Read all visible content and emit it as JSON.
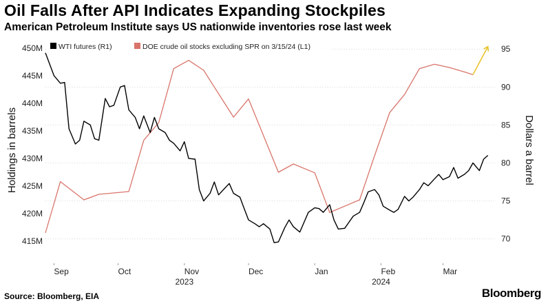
{
  "header": {
    "title": "Oil Falls After API Indicates Expanding Stockpiles",
    "subtitle": "American Petroleum Institute says US nationwide inventories rose last week"
  },
  "footer": {
    "source": "Source: Bloomberg, EIA",
    "brand": "Bloomberg"
  },
  "chart_data": {
    "type": "line",
    "x_range": [
      "2023-08-28",
      "2024-03-25"
    ],
    "x_tick_labels": [
      {
        "label": "Sep",
        "date": "2023-09-01"
      },
      {
        "label": "Oct",
        "date": "2023-10-01"
      },
      {
        "label": "Nov",
        "date": "2023-11-01"
      },
      {
        "label": "Dec",
        "date": "2023-12-01"
      },
      {
        "label": "Jan",
        "date": "2024-01-01"
      },
      {
        "label": "Feb",
        "date": "2024-02-01"
      },
      {
        "label": "Mar",
        "date": "2024-03-01"
      }
    ],
    "x_year_labels": [
      {
        "label": "2023",
        "date": "2023-11-01"
      },
      {
        "label": "2024",
        "date": "2024-02-01"
      }
    ],
    "left_axis": {
      "label": "Holdings in barrels",
      "range": [
        411,
        451.5
      ],
      "ticks": [
        415,
        420,
        425,
        430,
        435,
        440,
        445,
        450
      ],
      "tick_labels": [
        "415M",
        "420M",
        "425M",
        "430M",
        "435M",
        "440M",
        "445M",
        "450M"
      ]
    },
    "right_axis": {
      "label": "Dollars a barrel",
      "range": [
        66.8,
        96.2
      ],
      "ticks": [
        70,
        75,
        80,
        85,
        90,
        95
      ],
      "tick_labels": [
        "70",
        "75",
        "80",
        "85",
        "90",
        "95"
      ]
    },
    "grid": true,
    "legend_position": "top-left",
    "series": [
      {
        "name": "WTI futures (R1)",
        "axis": "right",
        "color": "#000000",
        "points": [
          [
            "2023-08-28",
            94.5
          ],
          [
            "2023-08-30",
            93.0
          ],
          [
            "2023-09-01",
            91.5
          ],
          [
            "2023-09-04",
            90.5
          ],
          [
            "2023-09-06",
            90.6
          ],
          [
            "2023-09-08",
            84.5
          ],
          [
            "2023-09-11",
            82.5
          ],
          [
            "2023-09-13",
            83.0
          ],
          [
            "2023-09-15",
            85.5
          ],
          [
            "2023-09-18",
            85.0
          ],
          [
            "2023-09-20",
            83.2
          ],
          [
            "2023-09-22",
            83.0
          ],
          [
            "2023-09-25",
            88.5
          ],
          [
            "2023-09-27",
            87.4
          ],
          [
            "2023-09-29",
            87.6
          ],
          [
            "2023-10-02",
            90.0
          ],
          [
            "2023-10-04",
            90.2
          ],
          [
            "2023-10-06",
            87.0
          ],
          [
            "2023-10-09",
            86.0
          ],
          [
            "2023-10-11",
            84.5
          ],
          [
            "2023-10-13",
            86.2
          ],
          [
            "2023-10-16",
            84.0
          ],
          [
            "2023-10-18",
            86.0
          ],
          [
            "2023-10-20",
            84.5
          ],
          [
            "2023-10-23",
            84.0
          ],
          [
            "2023-10-25",
            83.0
          ],
          [
            "2023-10-27",
            82.6
          ],
          [
            "2023-10-30",
            81.6
          ],
          [
            "2023-11-01",
            82.8
          ],
          [
            "2023-11-03",
            80.6
          ],
          [
            "2023-11-06",
            80.5
          ],
          [
            "2023-11-08",
            76.5
          ],
          [
            "2023-11-10",
            75.0
          ],
          [
            "2023-11-13",
            76.0
          ],
          [
            "2023-11-15",
            77.5
          ],
          [
            "2023-11-17",
            75.8
          ],
          [
            "2023-11-20",
            76.7
          ],
          [
            "2023-11-22",
            77.3
          ],
          [
            "2023-11-24",
            76.0
          ],
          [
            "2023-11-27",
            75.5
          ],
          [
            "2023-11-29",
            74.0
          ],
          [
            "2023-12-01",
            72.5
          ],
          [
            "2023-12-04",
            72.0
          ],
          [
            "2023-12-06",
            71.6
          ],
          [
            "2023-12-08",
            72.0
          ],
          [
            "2023-12-11",
            71.3
          ],
          [
            "2023-12-13",
            69.5
          ],
          [
            "2023-12-15",
            69.6
          ],
          [
            "2023-12-18",
            71.5
          ],
          [
            "2023-12-20",
            72.5
          ],
          [
            "2023-12-22",
            71.6
          ],
          [
            "2023-12-25",
            70.9
          ],
          [
            "2023-12-27",
            72.2
          ],
          [
            "2023-12-29",
            73.5
          ],
          [
            "2024-01-01",
            74.1
          ],
          [
            "2024-01-03",
            74.0
          ],
          [
            "2024-01-05",
            73.5
          ],
          [
            "2024-01-08",
            74.5
          ],
          [
            "2024-01-10",
            72.5
          ],
          [
            "2024-01-12",
            71.3
          ],
          [
            "2024-01-15",
            71.4
          ],
          [
            "2024-01-17",
            72.2
          ],
          [
            "2024-01-19",
            73.0
          ],
          [
            "2024-01-22",
            73.5
          ],
          [
            "2024-01-24",
            74.8
          ],
          [
            "2024-01-26",
            76.2
          ],
          [
            "2024-01-29",
            76.5
          ],
          [
            "2024-01-31",
            75.8
          ],
          [
            "2024-02-02",
            74.3
          ],
          [
            "2024-02-05",
            73.8
          ],
          [
            "2024-02-07",
            73.5
          ],
          [
            "2024-02-09",
            73.9
          ],
          [
            "2024-02-12",
            75.6
          ],
          [
            "2024-02-14",
            75.0
          ],
          [
            "2024-02-16",
            75.5
          ],
          [
            "2024-02-19",
            76.5
          ],
          [
            "2024-02-21",
            77.4
          ],
          [
            "2024-02-23",
            77.0
          ],
          [
            "2024-02-26",
            77.9
          ],
          [
            "2024-02-28",
            78.5
          ],
          [
            "2024-03-01",
            77.8
          ],
          [
            "2024-03-04",
            78.2
          ],
          [
            "2024-03-06",
            79.4
          ],
          [
            "2024-03-08",
            78.0
          ],
          [
            "2024-03-11",
            78.5
          ],
          [
            "2024-03-13",
            79.0
          ],
          [
            "2024-03-15",
            80.0
          ],
          [
            "2024-03-18",
            79.0
          ],
          [
            "2024-03-20",
            80.5
          ],
          [
            "2024-03-22",
            81.0
          ]
        ]
      },
      {
        "name": "DOE crude oil stocks excluding SPR on 3/15/24 (L1)",
        "axis": "left",
        "color": "#d9746a",
        "points": [
          [
            "2023-08-28",
            416.5
          ],
          [
            "2023-09-04",
            425.8
          ],
          [
            "2023-09-15",
            422.5
          ],
          [
            "2023-09-22",
            423.5
          ],
          [
            "2023-10-06",
            424.0
          ],
          [
            "2023-10-13",
            433.3
          ],
          [
            "2023-10-20",
            436.5
          ],
          [
            "2023-10-27",
            446.3
          ],
          [
            "2023-11-03",
            447.8
          ],
          [
            "2023-11-10",
            446.0
          ],
          [
            "2023-11-24",
            437.5
          ],
          [
            "2023-12-01",
            440.8
          ],
          [
            "2023-12-15",
            427.5
          ],
          [
            "2023-12-22",
            429.0
          ],
          [
            "2024-01-01",
            427.4
          ],
          [
            "2024-01-08",
            420.2
          ],
          [
            "2024-01-22",
            422.5
          ],
          [
            "2024-01-29",
            430.5
          ],
          [
            "2024-02-05",
            438.3
          ],
          [
            "2024-02-12",
            441.6
          ],
          [
            "2024-02-19",
            446.3
          ],
          [
            "2024-02-26",
            447.1
          ],
          [
            "2024-03-04",
            446.5
          ],
          [
            "2024-03-11",
            445.7
          ],
          [
            "2024-03-15",
            445.2
          ]
        ]
      }
    ],
    "annotations": [
      {
        "type": "arrow",
        "color": "#e8c32e",
        "from": [
          "2024-03-15",
          445.2
        ],
        "to": [
          "2024-03-22",
          450.3
        ]
      }
    ]
  }
}
